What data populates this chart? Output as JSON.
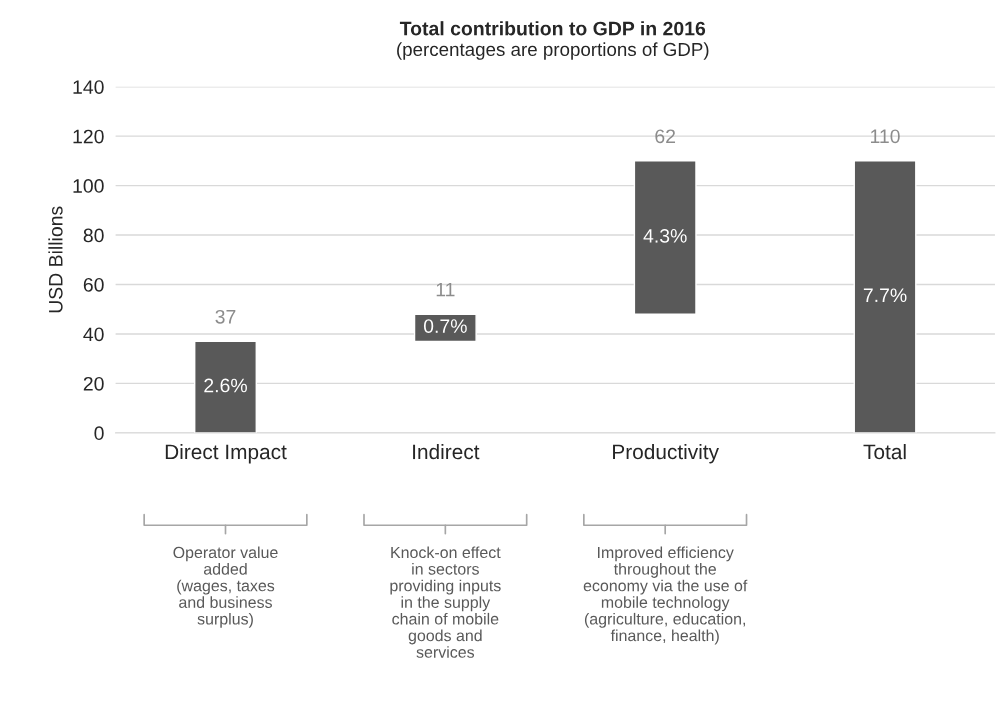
{
  "chart_data": {
    "type": "bar",
    "title": "Total contribution to GDP in 2016",
    "subtitle": "(percentages are proportions of GDP)",
    "ylabel": "USD Billions",
    "categories": [
      "Direct Impact",
      "Indirect",
      "Productivity",
      "Total"
    ],
    "values": [
      37,
      11,
      62,
      110
    ],
    "base": [
      0,
      37,
      48,
      0
    ],
    "color": "#595959",
    "data_labels": true,
    "ylim": [
      0,
      140
    ],
    "yticks": [
      0,
      20,
      40,
      60,
      80,
      100,
      120,
      140
    ],
    "grid": "y",
    "annotations": [
      "2.6%",
      "0.7%",
      "4.3%",
      "7.7%",
      "Operator value\nadded\n(wages, taxes\nand business\nsurplus)",
      "Knock-on effect\nin sectors\nproviding inputs\nin the supply\nchain of mobile\ngoods and\nservices",
      "Improved efficiency\nthroughout the\neconomy via the use of\nmobile technology\n(agriculture, education,\nfinance, health)"
    ]
  }
}
